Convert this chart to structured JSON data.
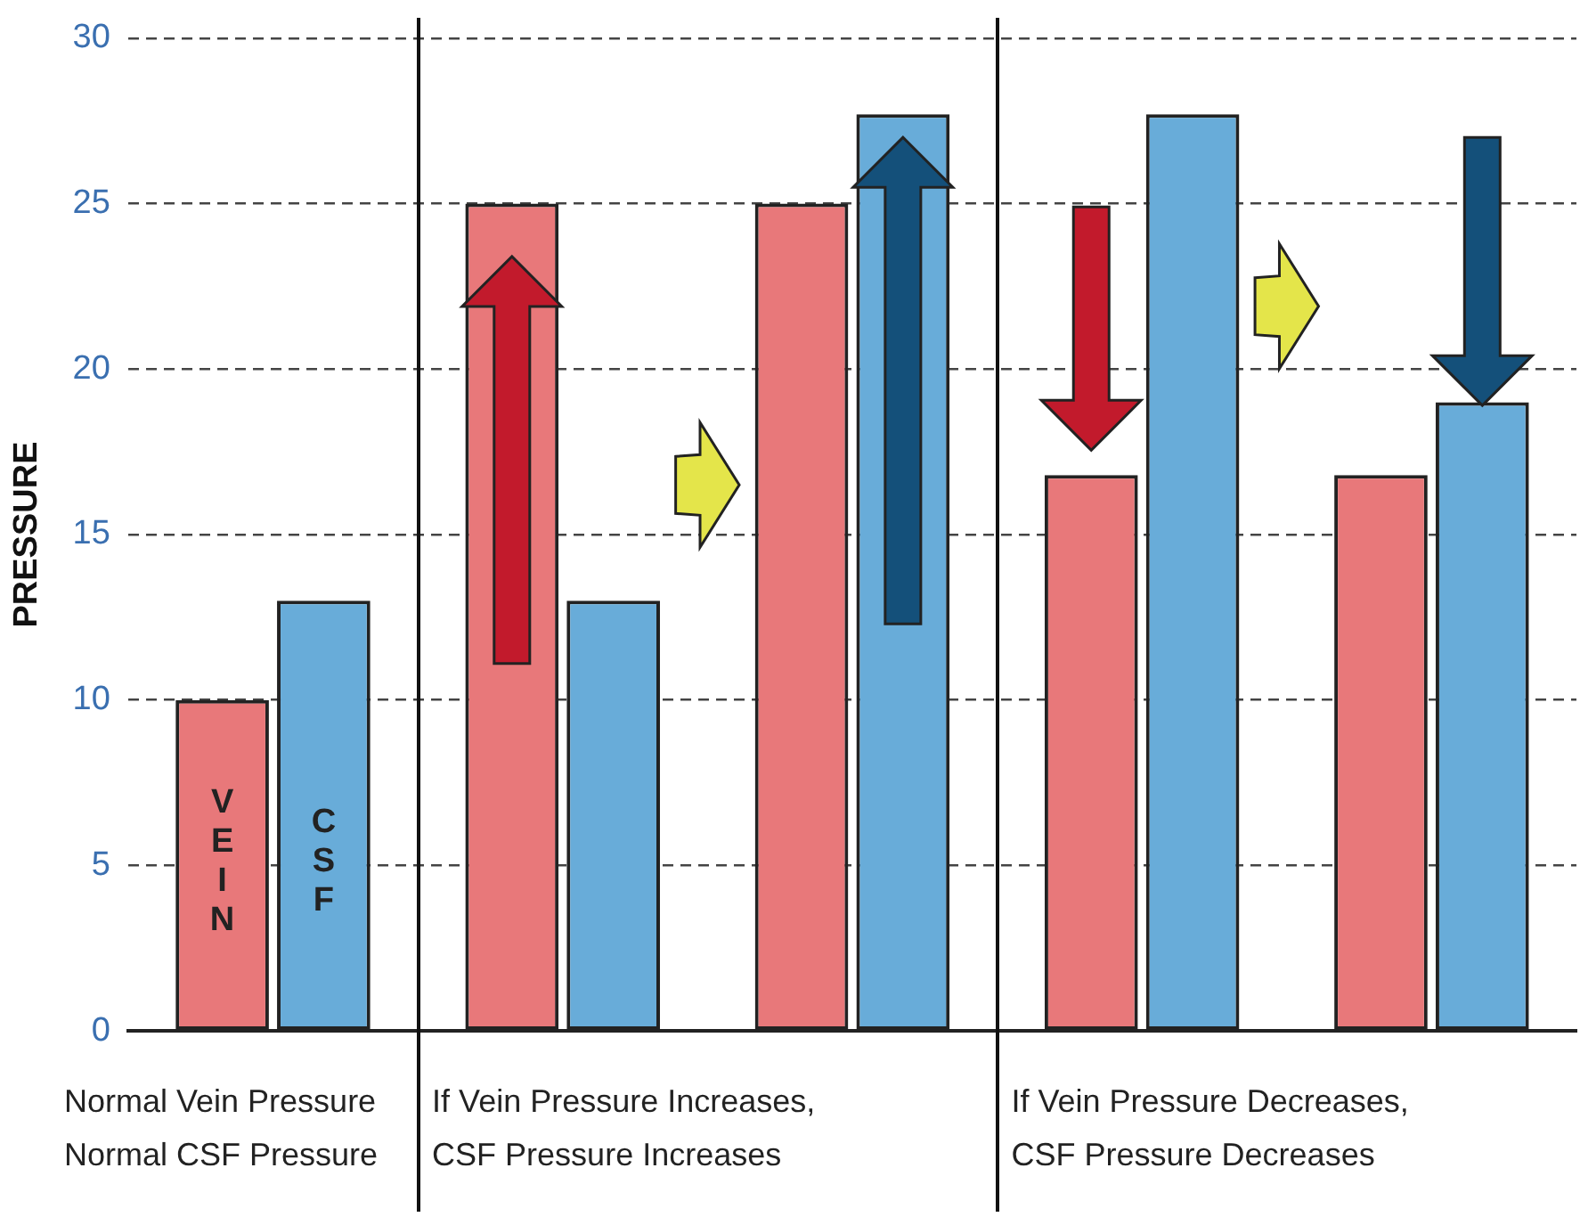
{
  "chart_data": {
    "type": "bar",
    "ylabel": "PRESSURE",
    "categories": [
      null,
      null,
      null,
      null,
      null
    ],
    "series": [
      {
        "name": "VEIN",
        "color": "#e8787a",
        "values": [
          10,
          25,
          25,
          16.8,
          16.8
        ]
      },
      {
        "name": "CSF",
        "color": "#68acd9",
        "values": [
          13,
          13,
          27.7,
          27.7,
          19
        ]
      }
    ],
    "ylim": [
      0,
      30
    ],
    "yticks": [
      0,
      5,
      10,
      15,
      20,
      25,
      30
    ],
    "grid": "y",
    "line_style": "dashed",
    "legend": false,
    "annotations": [
      "Normal Vein Pressure\nNormal CSF Pressure",
      "If Vein Pressure Increases,\nCSF Pressure Increases",
      "If Vein Pressure Decreases,\nCSF Pressure Decreases"
    ]
  }
}
